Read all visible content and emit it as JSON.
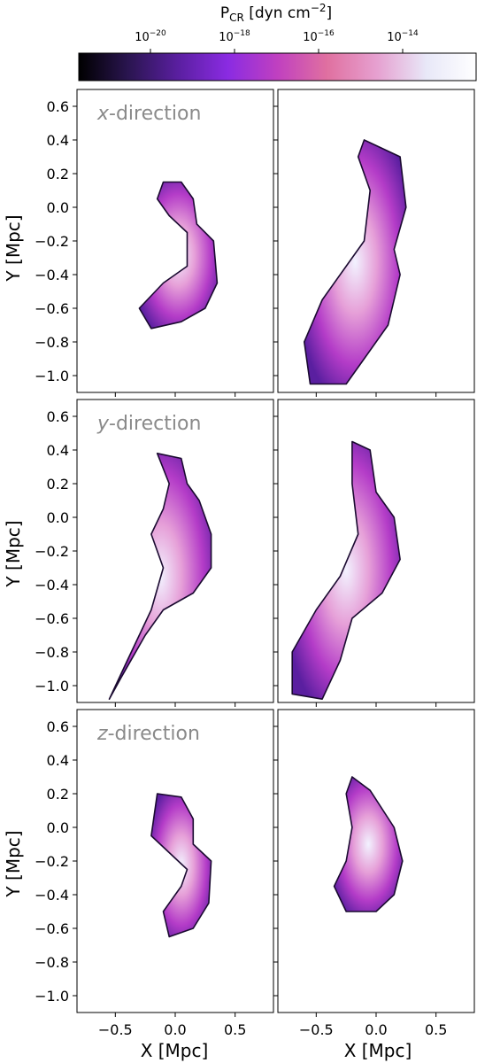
{
  "colorbar": {
    "label_base": "P",
    "label_sub": "CR",
    "label_rest": " [dyn cm",
    "label_sup": "−2",
    "label_close": "]",
    "colors": [
      "#000000",
      "#2a1550",
      "#5a1fa0",
      "#8a2be2",
      "#c040c0",
      "#e070a0",
      "#e6a0d0",
      "#e8e8f8",
      "#ffffff"
    ],
    "ticks": [
      {
        "base": "10",
        "exp": "−20"
      },
      {
        "base": "10",
        "exp": "−18"
      },
      {
        "base": "10",
        "exp": "−16"
      },
      {
        "base": "10",
        "exp": "−14"
      }
    ]
  },
  "chart_data": {
    "type": "heatmap",
    "description_of_grid": "3 rows x 2 columns of projected cosmic-ray pressure maps with contours",
    "xlabel": "X [Mpc]",
    "ylabel": "Y [Mpc]",
    "xlim": [
      -0.82,
      0.82
    ],
    "ylim": [
      -1.1,
      0.7
    ],
    "xticks": [
      -0.5,
      0.0,
      0.5
    ],
    "xtick_labels": [
      "−0.5",
      "0.0",
      "0.5"
    ],
    "yticks": [
      0.6,
      0.4,
      0.2,
      0.0,
      -0.2,
      -0.4,
      -0.6,
      -0.8,
      -1.0
    ],
    "ytick_labels": [
      "0.6",
      "0.4",
      "0.2",
      "0.0",
      "−0.2",
      "−0.4",
      "−0.6",
      "−0.8",
      "−1.0"
    ],
    "row_labels": [
      {
        "italic": "x",
        "rest": "-direction"
      },
      {
        "italic": "y",
        "rest": "-direction"
      },
      {
        "italic": "z",
        "rest": "-direction"
      }
    ]
  }
}
